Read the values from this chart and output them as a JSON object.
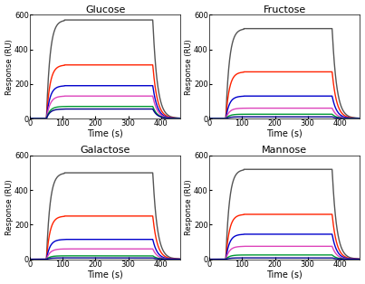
{
  "titles": [
    "Glucose",
    "Fructose",
    "Galactose",
    "Mannose"
  ],
  "ylabel": "Response (RU)",
  "xlabel": "Time (s)",
  "xlim": [
    0,
    460
  ],
  "ylim": [
    0,
    600
  ],
  "xticks": [
    0,
    100,
    200,
    300,
    400
  ],
  "yticks": [
    0,
    200,
    400,
    600
  ],
  "colors": [
    "#555555",
    "#ff2200",
    "#0000cc",
    "#dd44bb",
    "#009933",
    "#000088"
  ],
  "glucose_peaks": [
    570,
    310,
    190,
    130,
    70,
    55
  ],
  "fructose_peaks": [
    520,
    270,
    130,
    60,
    25,
    10
  ],
  "galactose_peaks": [
    500,
    250,
    115,
    60,
    20,
    8
  ],
  "mannose_peaks": [
    520,
    260,
    145,
    75,
    25,
    8
  ],
  "t_start": 50,
  "t_plateau_start": 105,
  "t_plateau_end": 375,
  "t_end": 430,
  "t_total": 460,
  "background_color": "#ffffff",
  "linewidth": 1.0
}
